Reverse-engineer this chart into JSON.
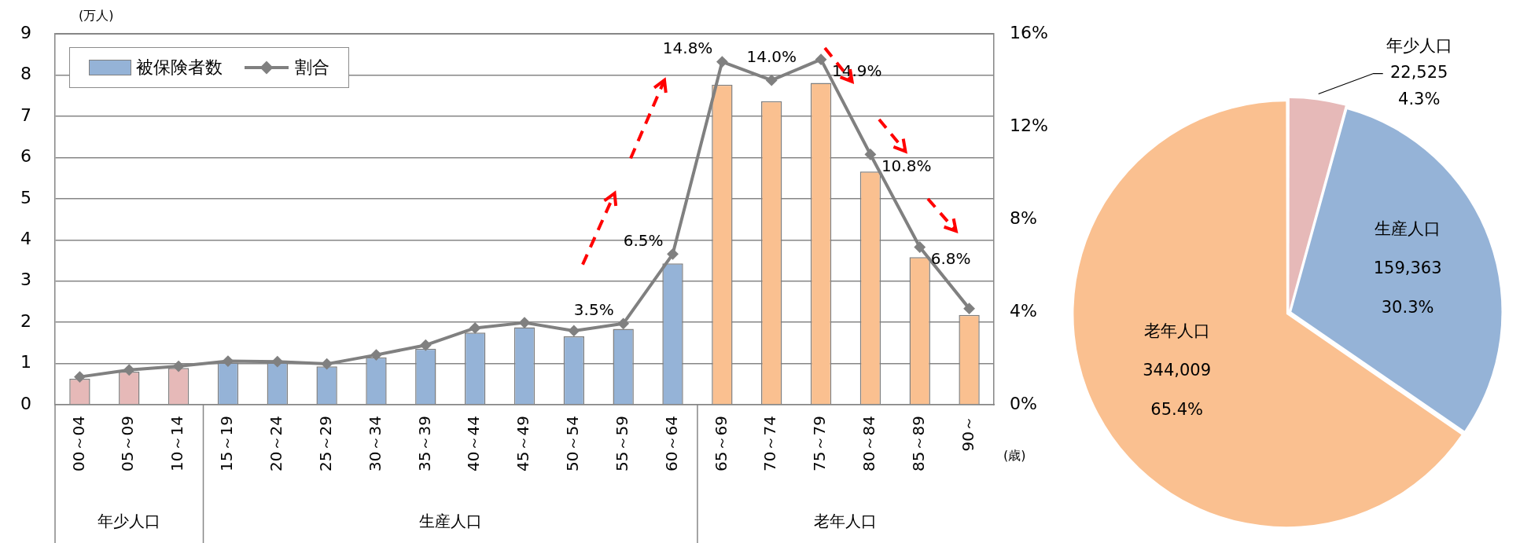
{
  "chart_data": [
    {
      "type": "bar",
      "ylabel": "(万人)",
      "xlabel": "(歳)",
      "categories": [
        "00～04",
        "05～09",
        "10～14",
        "15～19",
        "20～24",
        "25～29",
        "30～34",
        "35～39",
        "40～44",
        "45～49",
        "50～54",
        "55～59",
        "60～64",
        "65～69",
        "70～74",
        "75～79",
        "80～84",
        "85～89",
        "90～"
      ],
      "series": [
        {
          "name": "被保険者数",
          "type": "bar",
          "color": "#95b3d7",
          "colors": [
            "#e6b9b8",
            "#e6b9b8",
            "#e6b9b8",
            "#95b3d7",
            "#95b3d7",
            "#95b3d7",
            "#95b3d7",
            "#95b3d7",
            "#95b3d7",
            "#95b3d7",
            "#95b3d7",
            "#95b3d7",
            "#95b3d7",
            "#fac090",
            "#fac090",
            "#fac090",
            "#fac090",
            "#fac090",
            "#fac090"
          ],
          "values": [
            0.63,
            0.8,
            0.89,
            1.02,
            1.02,
            0.93,
            1.15,
            1.36,
            1.75,
            1.88,
            1.66,
            1.84,
            3.43,
            7.77,
            7.37,
            7.81,
            5.66,
            3.58,
            2.18
          ]
        },
        {
          "name": "割合",
          "type": "line",
          "axis": "y2",
          "color": "#808080",
          "values": [
            1.2,
            1.5,
            1.66,
            1.88,
            1.86,
            1.76,
            2.15,
            2.57,
            3.31,
            3.54,
            3.19,
            3.5,
            6.5,
            14.8,
            14.0,
            14.9,
            10.8,
            6.8,
            4.15
          ],
          "value_labels": [
            null,
            null,
            null,
            null,
            null,
            null,
            null,
            null,
            null,
            null,
            null,
            "3.5%",
            "6.5%",
            "14.8%",
            "14.0%",
            "14.9%",
            "10.8%",
            "6.8%",
            null
          ]
        }
      ],
      "ylim": [
        0,
        9
      ],
      "yticks": [
        0,
        1,
        2,
        3,
        4,
        5,
        6,
        7,
        8,
        9
      ],
      "y2lim": [
        0,
        16
      ],
      "y2ticks": [
        {
          "value": 0,
          "label": "0%"
        },
        {
          "value": 4,
          "label": "4%"
        },
        {
          "value": 8,
          "label": "8%"
        },
        {
          "value": 12,
          "label": "12%"
        },
        {
          "value": 16,
          "label": "16%"
        }
      ],
      "annotations": [
        "年少人口",
        "生産人口",
        "老年人口"
      ],
      "grid": "y",
      "legend": "top left",
      "marker": "diamond"
    },
    {
      "type": "pie",
      "categories": [
        "年少人口",
        "生産人口",
        "老年人口"
      ],
      "values": [
        22525,
        159363,
        344009
      ],
      "colors": [
        "#e6b9b8",
        "#95b3d7",
        "#fac090"
      ],
      "value_labels": [
        "22,525\n4.3%",
        "159,363\n30.3%",
        "344,009\n65.4%"
      ]
    }
  ]
}
